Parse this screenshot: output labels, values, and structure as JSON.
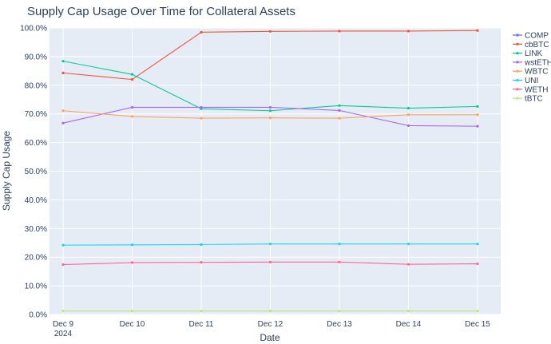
{
  "chart_data": {
    "type": "line",
    "title": "Supply Cap Usage Over Time for Collateral Assets",
    "xlabel": "Date",
    "ylabel": "Supply Cap Usage",
    "x_ticks": [
      {
        "label": "Dec 9",
        "sub": "2024"
      },
      {
        "label": "Dec 10",
        "sub": ""
      },
      {
        "label": "Dec 11",
        "sub": ""
      },
      {
        "label": "Dec 12",
        "sub": ""
      },
      {
        "label": "Dec 13",
        "sub": ""
      },
      {
        "label": "Dec 14",
        "sub": ""
      },
      {
        "label": "Dec 15",
        "sub": ""
      }
    ],
    "x": [
      "2024-12-09",
      "2024-12-10",
      "2024-12-11",
      "2024-12-12",
      "2024-12-13",
      "2024-12-14",
      "2024-12-15"
    ],
    "ylim": [
      0,
      100
    ],
    "y_ticks": [
      "0.0%",
      "10.0%",
      "20.0%",
      "30.0%",
      "40.0%",
      "50.0%",
      "60.0%",
      "70.0%",
      "80.0%",
      "90.0%",
      "100.0%"
    ],
    "grid": true,
    "legend_position": "right",
    "series": [
      {
        "name": "COMP",
        "color": "#636efa",
        "values": [
          null,
          null,
          null,
          null,
          null,
          null,
          null
        ]
      },
      {
        "name": "cbBTC",
        "color": "#EF553B",
        "values": [
          84.3,
          82.0,
          98.5,
          98.8,
          98.9,
          98.9,
          99.1
        ]
      },
      {
        "name": "LINK",
        "color": "#00cc96",
        "values": [
          88.4,
          83.8,
          71.8,
          71.1,
          72.9,
          72.0,
          72.6
        ]
      },
      {
        "name": "wstETH",
        "color": "#ab63fa",
        "values": [
          66.8,
          72.3,
          72.3,
          72.3,
          71.2,
          65.9,
          65.7
        ]
      },
      {
        "name": "WBTC",
        "color": "#FFA15A",
        "values": [
          71.1,
          69.1,
          68.5,
          68.6,
          68.5,
          69.7,
          69.7
        ]
      },
      {
        "name": "UNI",
        "color": "#19d3f3",
        "values": [
          24.2,
          24.3,
          24.4,
          24.6,
          24.6,
          24.6,
          24.6
        ]
      },
      {
        "name": "WETH",
        "color": "#FF6692",
        "values": [
          17.4,
          18.1,
          18.2,
          18.3,
          18.3,
          17.5,
          17.7
        ]
      },
      {
        "name": "tBTC",
        "color": "#B6E880",
        "values": [
          1.2,
          1.2,
          1.2,
          1.2,
          1.2,
          1.2,
          1.2
        ]
      }
    ]
  }
}
